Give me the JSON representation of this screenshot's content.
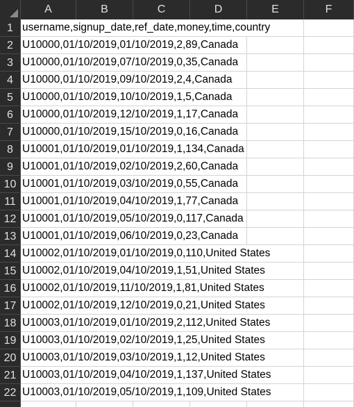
{
  "columns": [
    "A",
    "B",
    "C",
    "D",
    "E",
    "F"
  ],
  "rows": [
    {
      "num": "1",
      "text": "username,signup_date,ref_date,money,time,country"
    },
    {
      "num": "2",
      "text": "U10000,01/10/2019,01/10/2019,2,89,Canada"
    },
    {
      "num": "3",
      "text": "U10000,01/10/2019,07/10/2019,0,35,Canada"
    },
    {
      "num": "4",
      "text": "U10000,01/10/2019,09/10/2019,2,4,Canada"
    },
    {
      "num": "5",
      "text": "U10000,01/10/2019,10/10/2019,1,5,Canada"
    },
    {
      "num": "6",
      "text": "U10000,01/10/2019,12/10/2019,1,17,Canada"
    },
    {
      "num": "7",
      "text": "U10000,01/10/2019,15/10/2019,0,16,Canada"
    },
    {
      "num": "8",
      "text": "U10001,01/10/2019,01/10/2019,1,134,Canada"
    },
    {
      "num": "9",
      "text": "U10001,01/10/2019,02/10/2019,2,60,Canada"
    },
    {
      "num": "10",
      "text": "U10001,01/10/2019,03/10/2019,0,55,Canada"
    },
    {
      "num": "11",
      "text": "U10001,01/10/2019,04/10/2019,1,77,Canada"
    },
    {
      "num": "12",
      "text": "U10001,01/10/2019,05/10/2019,0,117,Canada"
    },
    {
      "num": "13",
      "text": "U10001,01/10/2019,06/10/2019,0,23,Canada"
    },
    {
      "num": "14",
      "text": "U10002,01/10/2019,01/10/2019,0,110,United States"
    },
    {
      "num": "15",
      "text": "U10002,01/10/2019,04/10/2019,1,51,United States"
    },
    {
      "num": "16",
      "text": "U10002,01/10/2019,11/10/2019,1,81,United States"
    },
    {
      "num": "17",
      "text": "U10002,01/10/2019,12/10/2019,0,21,United States"
    },
    {
      "num": "18",
      "text": "U10003,01/10/2019,01/10/2019,2,112,United States"
    },
    {
      "num": "19",
      "text": "U10003,01/10/2019,02/10/2019,1,25,United States"
    },
    {
      "num": "20",
      "text": "U10003,01/10/2019,03/10/2019,1,12,United States"
    },
    {
      "num": "21",
      "text": "U10003,01/10/2019,04/10/2019,1,137,United States"
    },
    {
      "num": "22",
      "text": "U10003,01/10/2019,05/10/2019,1,109,United States"
    }
  ]
}
